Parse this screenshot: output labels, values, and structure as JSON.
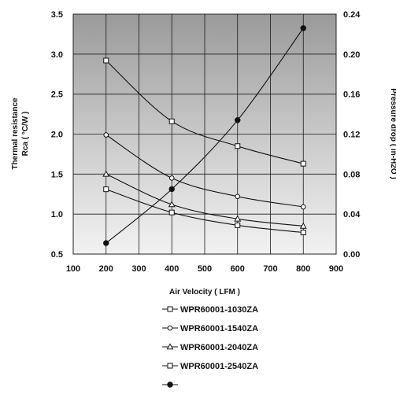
{
  "chart_data": {
    "type": "line",
    "xlabel": "Air Velocity ( LFM )",
    "ylabel_left_line1": "Thermal resistance",
    "ylabel_left_line2": "Rca ( °C/W )",
    "ylabel_right": "Pressure drop ( in-H2O )",
    "xlim": [
      100,
      900
    ],
    "x_ticks": [
      "100",
      "200",
      "300",
      "400",
      "500",
      "600",
      "700",
      "800",
      "900"
    ],
    "ylim_left": [
      0.5,
      3.5
    ],
    "y_left_ticks": [
      "0.5",
      "1.0",
      "1.5",
      "2.0",
      "2.5",
      "3.0",
      "3.5"
    ],
    "ylim_right": [
      0.0,
      0.24
    ],
    "y_right_ticks": [
      "0.00",
      "0.04",
      "0.08",
      "0.12",
      "0.16",
      "0.20",
      "0.24"
    ],
    "grid": true,
    "legend_position": "bottom",
    "series": [
      {
        "name": "WPR60001-1030ZA",
        "marker": "square",
        "axis": "left",
        "x": [
          200,
          400,
          600,
          800
        ],
        "values": [
          2.92,
          2.16,
          1.85,
          1.63
        ]
      },
      {
        "name": "WPR60001-1540ZA",
        "marker": "circle",
        "axis": "left",
        "x": [
          200,
          400,
          600,
          800
        ],
        "values": [
          1.99,
          1.45,
          1.22,
          1.09
        ]
      },
      {
        "name": "WPR60001-2040ZA",
        "marker": "triangle",
        "axis": "left",
        "x": [
          200,
          400,
          600,
          800
        ],
        "values": [
          1.5,
          1.12,
          0.94,
          0.85
        ]
      },
      {
        "name": "WPR60001-2540ZA",
        "marker": "square",
        "axis": "left",
        "x": [
          200,
          400,
          600,
          800
        ],
        "values": [
          1.31,
          1.02,
          0.86,
          0.77
        ]
      },
      {
        "name": "",
        "marker": "filled-circle",
        "axis": "right",
        "x": [
          200,
          400,
          600,
          800
        ],
        "values": [
          0.011,
          0.065,
          0.134,
          0.226
        ]
      }
    ]
  }
}
